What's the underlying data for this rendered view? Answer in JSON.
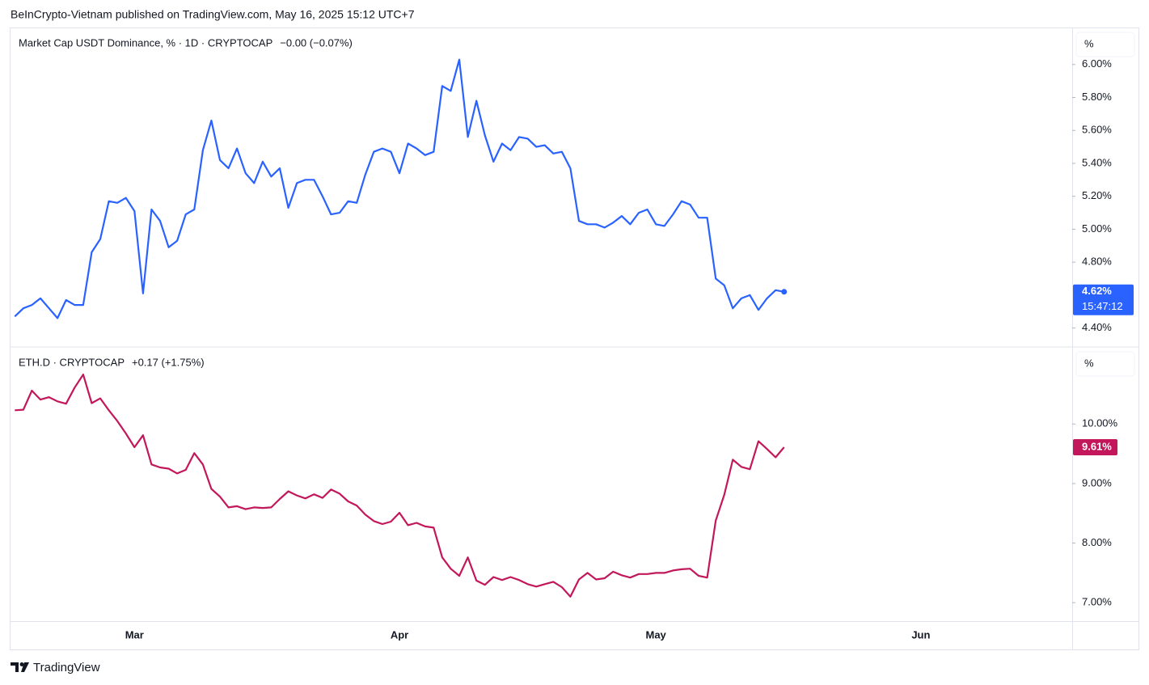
{
  "header": {
    "publisher": "BeInCrypto-Vietnam published on TradingView.com, May 16, 2025 15:12 UTC+7"
  },
  "footer": {
    "brand": "TradingView"
  },
  "chart_data": [
    {
      "type": "line",
      "title": "Market Cap USDT Dominance, % · 1D · CRYPTOCAP",
      "change": "−0.00 (−0.07%)",
      "unit": "%",
      "color": "#2962ff",
      "last_label": "4.62%",
      "countdown": "15:47:12",
      "series": [
        {
          "color": "#2962ff",
          "values": [
            4.47,
            4.52,
            4.54,
            4.58,
            4.52,
            4.46,
            4.57,
            4.54,
            4.54,
            4.86,
            4.94,
            5.17,
            5.16,
            5.19,
            5.11,
            4.61,
            5.12,
            5.05,
            4.89,
            4.93,
            5.09,
            5.12,
            5.48,
            5.66,
            5.42,
            5.37,
            5.49,
            5.34,
            5.28,
            5.41,
            5.32,
            5.37,
            5.13,
            5.28,
            5.3,
            5.3,
            5.2,
            5.09,
            5.1,
            5.17,
            5.16,
            5.33,
            5.47,
            5.49,
            5.47,
            5.34,
            5.52,
            5.49,
            5.45,
            5.47,
            5.87,
            5.84,
            6.03,
            5.56,
            5.78,
            5.57,
            5.41,
            5.52,
            5.48,
            5.56,
            5.55,
            5.5,
            5.51,
            5.46,
            5.47,
            5.37,
            5.05,
            5.03,
            5.03,
            5.01,
            5.04,
            5.08,
            5.03,
            5.1,
            5.12,
            5.03,
            5.02,
            5.09,
            5.17,
            5.15,
            5.07,
            5.07,
            4.7,
            4.66,
            4.52,
            4.58,
            4.6,
            4.51,
            4.58,
            4.63,
            4.62
          ]
        }
      ],
      "xlim": [
        -0.5,
        123.7
      ],
      "ylim": [
        4.29,
        6.22
      ],
      "yticks": [
        {
          "value": 4.4,
          "label": "4.40%"
        },
        {
          "value": 4.8,
          "label": "4.80%"
        },
        {
          "value": 5.0,
          "label": "5.00%"
        },
        {
          "value": 5.2,
          "label": "5.20%"
        },
        {
          "value": 5.4,
          "label": "5.40%"
        },
        {
          "value": 5.6,
          "label": "5.60%"
        },
        {
          "value": 5.8,
          "label": "5.80%"
        },
        {
          "value": 6.0,
          "label": "6.00%"
        }
      ],
      "grid": false
    },
    {
      "type": "line",
      "title": "ETH.D · CRYPTOCAP",
      "change": "+0.17 (+1.75%)",
      "unit": "%",
      "color": "#c2185b",
      "last_label": "9.61%",
      "series": [
        {
          "color": "#c2185b",
          "values": [
            10.23,
            10.24,
            10.56,
            10.41,
            10.45,
            10.38,
            10.34,
            10.61,
            10.83,
            10.35,
            10.43,
            10.23,
            10.05,
            9.84,
            9.61,
            9.81,
            9.32,
            9.27,
            9.25,
            9.17,
            9.23,
            9.51,
            9.32,
            8.91,
            8.78,
            8.6,
            8.62,
            8.57,
            8.6,
            8.59,
            8.6,
            8.74,
            8.87,
            8.8,
            8.75,
            8.82,
            8.76,
            8.9,
            8.83,
            8.7,
            8.63,
            8.48,
            8.37,
            8.32,
            8.36,
            8.51,
            8.3,
            8.34,
            8.28,
            8.26,
            7.76,
            7.57,
            7.45,
            7.76,
            7.37,
            7.3,
            7.43,
            7.38,
            7.43,
            7.38,
            7.31,
            7.27,
            7.31,
            7.35,
            7.26,
            7.1,
            7.39,
            7.5,
            7.39,
            7.41,
            7.52,
            7.46,
            7.42,
            7.48,
            7.48,
            7.5,
            7.5,
            7.54,
            7.56,
            7.57,
            7.45,
            7.42,
            8.38,
            8.81,
            9.4,
            9.28,
            9.24,
            9.71,
            9.58,
            9.44,
            9.61
          ]
        }
      ],
      "xlim": [
        -0.5,
        123.7
      ],
      "ylim": [
        6.69,
        11.28
      ],
      "yticks": [
        {
          "value": 7,
          "label": "7.00%"
        },
        {
          "value": 8,
          "label": "8.00%"
        },
        {
          "value": 9,
          "label": "9.00%"
        },
        {
          "value": 10,
          "label": "10.00%"
        }
      ],
      "xticks": [
        {
          "value": 14,
          "label": "Mar"
        },
        {
          "value": 45,
          "label": "Apr"
        },
        {
          "value": 75,
          "label": "May"
        },
        {
          "value": 106,
          "label": "Jun"
        }
      ],
      "grid": false
    }
  ]
}
